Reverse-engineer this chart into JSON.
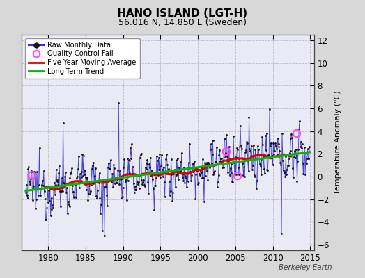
{
  "title": "HANO ISLAND (LGT-H)",
  "subtitle": "56.016 N, 14.850 E (Sweden)",
  "ylabel": "Temperature Anomaly (°C)",
  "watermark": "Berkeley Earth",
  "ylim": [
    -6.5,
    12.5
  ],
  "yticks": [
    -6,
    -4,
    -2,
    0,
    2,
    4,
    6,
    8,
    10,
    12
  ],
  "xlim": [
    1976.5,
    2015.5
  ],
  "xticks": [
    1980,
    1985,
    1990,
    1995,
    2000,
    2005,
    2010,
    2015
  ],
  "start_year": 1977,
  "end_year": 2014,
  "bg_color": "#d8d8d8",
  "plot_bg_color": "#eaeaf4",
  "grid_color": "#bbbbcc",
  "line_color": "#3333cc",
  "dot_color": "#111111",
  "ma_color": "#dd0000",
  "trend_color": "#00bb00",
  "qc_color": "#ff44ff",
  "legend_bg": "#ffffff",
  "qc_times": [
    1977.8,
    2003.8,
    2005.3,
    2013.2
  ],
  "qc_vals": [
    0.1,
    2.2,
    0.05,
    3.8
  ]
}
